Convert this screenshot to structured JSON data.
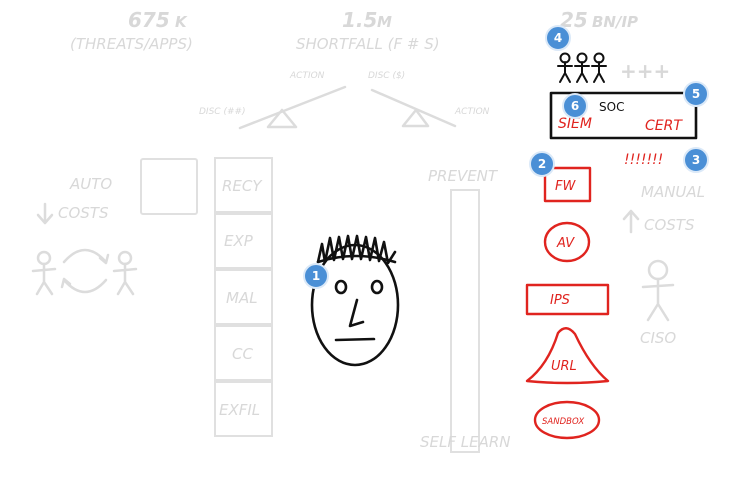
{
  "stats": [
    {
      "value": "675",
      "unit": "K",
      "caption": "(THREATS/APPS)"
    },
    {
      "value": "1.5",
      "unit": "M",
      "caption": "SHORTFALL (F # S)"
    },
    {
      "value": "25",
      "unit": "BN/IP",
      "caption": ""
    }
  ],
  "scale": {
    "left_top": "ACTION",
    "right_top": "DISC ($)",
    "left_low": "DISC (##)",
    "right_low": "ACTION"
  },
  "auto": {
    "title": "AUTO",
    "costs": "COSTS"
  },
  "manual": {
    "title": "MANUAL",
    "costs": "COSTS",
    "person": "CISO"
  },
  "attack_chain": [
    "RECY",
    "EXP",
    "MAL",
    "CC",
    "EXFIL"
  ],
  "prevent": {
    "top": "PREVENT",
    "bottom": "SELF LEARN"
  },
  "soc": {
    "title": "SOC",
    "left": "SIEM",
    "right": "CERT",
    "plus": "+++",
    "alerts": "!!!!!!!"
  },
  "controls": [
    "FW",
    "AV",
    "IPS",
    "URL",
    "SANDBOX"
  ],
  "badges": [
    "1",
    "2",
    "3",
    "4",
    "5",
    "6"
  ],
  "colors": {
    "red": "#e0241f",
    "faint": "#d8d8d8",
    "badge": "#4a8fd6"
  }
}
